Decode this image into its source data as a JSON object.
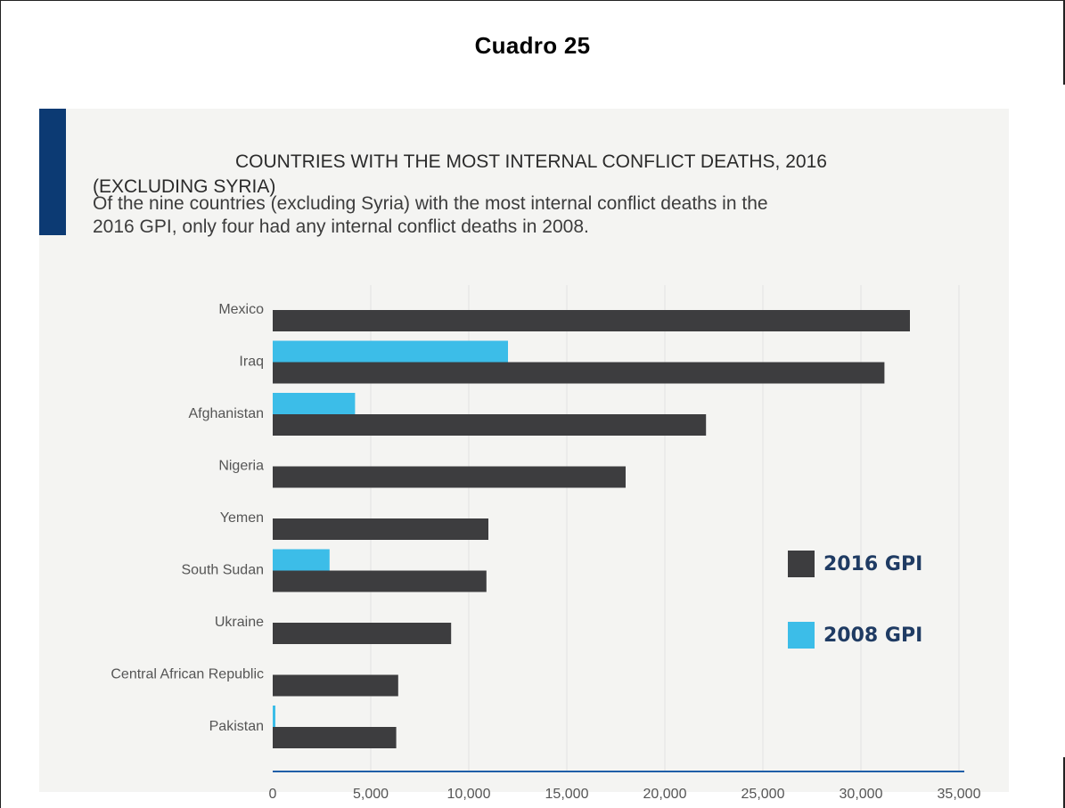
{
  "page": {
    "heading": "Cuadro 25"
  },
  "chart_data": {
    "type": "bar",
    "orientation": "horizontal",
    "title": "COUNTRIES WITH THE MOST INTERNAL CONFLICT DEATHS, 2016 (EXCLUDING SYRIA)",
    "title_line1": "COUNTRIES WITH THE MOST INTERNAL CONFLICT DEATHS, 2016",
    "title_line2": "(EXCLUDING SYRIA)",
    "subtitle": "Of the nine countries (excluding Syria) with the most internal conflict deaths in the 2016 GPI, only four had any internal conflict deaths in 2008.",
    "subtitle_line1": "Of the nine countries (excluding Syria) with the most internal conflict deaths in the",
    "subtitle_line2": "2016 GPI, only four had any internal conflict deaths in 2008.",
    "categories": [
      "Mexico",
      "Iraq",
      "Afghanistan",
      "Nigeria",
      "Yemen",
      "South Sudan",
      "Ukraine",
      "Central African Republic",
      "Pakistan"
    ],
    "series": [
      {
        "name": "2016 GPI",
        "color": "#3d3d3f",
        "values": [
          32500,
          31200,
          22100,
          18000,
          11000,
          10900,
          9100,
          6400,
          6300
        ]
      },
      {
        "name": "2008 GPI",
        "color": "#3cbde8",
        "values": [
          0,
          12000,
          4200,
          0,
          0,
          2900,
          0,
          0,
          100
        ]
      }
    ],
    "x_ticks": [
      0,
      5000,
      10000,
      15000,
      20000,
      25000,
      30000,
      35000
    ],
    "x_tick_labels": [
      "0",
      "5,000",
      "10,000",
      "15,000",
      "20,000",
      "25,000",
      "30,000",
      "35,000"
    ],
    "xlim": [
      0,
      35000
    ],
    "grid": "vertical",
    "legend_position": "right"
  }
}
